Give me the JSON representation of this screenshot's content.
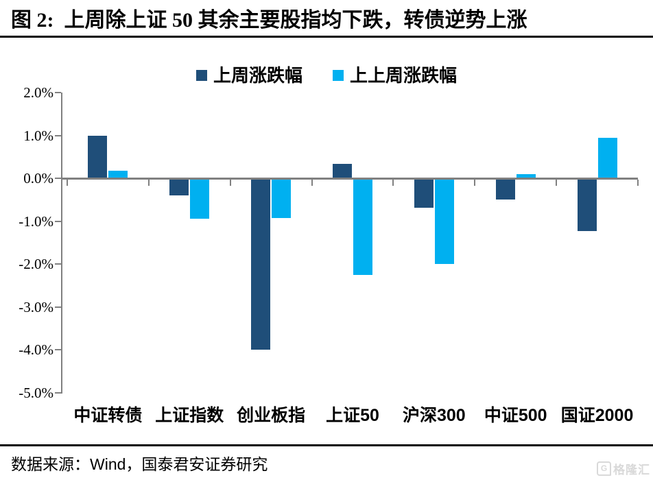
{
  "header": {
    "title": "图 2:  上周除上证 50 其余主要股指均下跌，转债逆势上涨"
  },
  "chart_data": {
    "type": "bar",
    "title": "上周除上证50其余主要股指均下跌，转债逆势上涨",
    "categories": [
      "中证转债",
      "上证指数",
      "创业板指",
      "上证50",
      "沪深300",
      "中证500",
      "国证2000"
    ],
    "series": [
      {
        "name": "上周涨跌幅",
        "color": "#1F4E79",
        "values": [
          1.0,
          -0.4,
          -4.0,
          0.33,
          -0.68,
          -0.5,
          -1.23
        ]
      },
      {
        "name": "上上周涨跌幅",
        "color": "#00B0F0",
        "values": [
          0.18,
          -0.94,
          -0.93,
          -2.25,
          -2.0,
          0.1,
          0.95
        ]
      }
    ],
    "unit": "%",
    "ylim": [
      -5.0,
      2.0
    ],
    "yticks": [
      2.0,
      1.0,
      0.0,
      -1.0,
      -2.0,
      -3.0,
      -4.0,
      -5.0
    ],
    "ytick_labels": [
      "2.0%",
      "1.0%",
      "0.0%",
      "-1.0%",
      "-2.0%",
      "-3.0%",
      "-4.0%",
      "-5.0%"
    ],
    "grid": false,
    "legend_position": "top",
    "axis_color": "#808080"
  },
  "footer": {
    "source": "数据来源：Wind，国泰君安证券研究",
    "watermark": "格隆汇",
    "watermark_icon": "G"
  }
}
